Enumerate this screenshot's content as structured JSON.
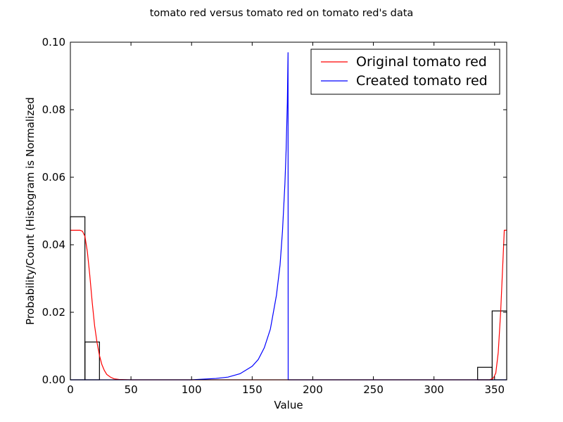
{
  "chart_data": {
    "type": "line",
    "title": "tomato red versus tomato red on tomato red's data",
    "xlabel": "Value",
    "ylabel": "Probability/Count (Histogram is Normalized",
    "xlim": [
      0,
      360
    ],
    "ylim": [
      0,
      0.1
    ],
    "xticks": [
      0,
      50,
      100,
      150,
      200,
      250,
      300,
      350
    ],
    "yticks": [
      0.0,
      0.02,
      0.04,
      0.06,
      0.08,
      0.1
    ],
    "ytick_labels": [
      "0.00",
      "0.02",
      "0.04",
      "0.06",
      "0.08",
      "0.10"
    ],
    "grid": false,
    "legend_position": "top-right",
    "histogram": {
      "color": "#000000",
      "bins": [
        {
          "x0": 0,
          "x1": 12,
          "value": 0.0483
        },
        {
          "x0": 12,
          "x1": 24,
          "value": 0.0112
        },
        {
          "x0": 336,
          "x1": 348,
          "value": 0.0037
        },
        {
          "x0": 348,
          "x1": 360,
          "value": 0.0204
        }
      ]
    },
    "series": [
      {
        "name": "Original tomato red",
        "color": "#ff0000",
        "points": [
          [
            0,
            0.0443
          ],
          [
            4,
            0.0443
          ],
          [
            8,
            0.0443
          ],
          [
            10,
            0.044
          ],
          [
            12,
            0.0425
          ],
          [
            14,
            0.038
          ],
          [
            16,
            0.031
          ],
          [
            18,
            0.023
          ],
          [
            20,
            0.016
          ],
          [
            22,
            0.011
          ],
          [
            24,
            0.0072
          ],
          [
            26,
            0.0045
          ],
          [
            28,
            0.0028
          ],
          [
            30,
            0.0016
          ],
          [
            33,
            0.0008
          ],
          [
            36,
            0.0003
          ],
          [
            40,
            0.0001
          ],
          [
            50,
            0
          ],
          [
            340,
            0
          ],
          [
            346,
            0
          ],
          [
            349,
            0.0005
          ],
          [
            351,
            0.002
          ],
          [
            353,
            0.008
          ],
          [
            355,
            0.02
          ],
          [
            357,
            0.036
          ],
          [
            358,
            0.0443
          ],
          [
            360,
            0.0443
          ]
        ]
      },
      {
        "name": "Created tomato red",
        "color": "#0000ff",
        "points": [
          [
            0,
            0
          ],
          [
            100,
            0
          ],
          [
            120,
            0.0004
          ],
          [
            130,
            0.0008
          ],
          [
            140,
            0.0018
          ],
          [
            150,
            0.004
          ],
          [
            155,
            0.006
          ],
          [
            160,
            0.0095
          ],
          [
            165,
            0.015
          ],
          [
            170,
            0.025
          ],
          [
            173,
            0.034
          ],
          [
            175,
            0.044
          ],
          [
            177,
            0.058
          ],
          [
            178,
            0.068
          ],
          [
            179,
            0.082
          ],
          [
            179.6,
            0.097
          ],
          [
            179.7,
            0
          ],
          [
            360,
            0
          ]
        ]
      }
    ]
  }
}
